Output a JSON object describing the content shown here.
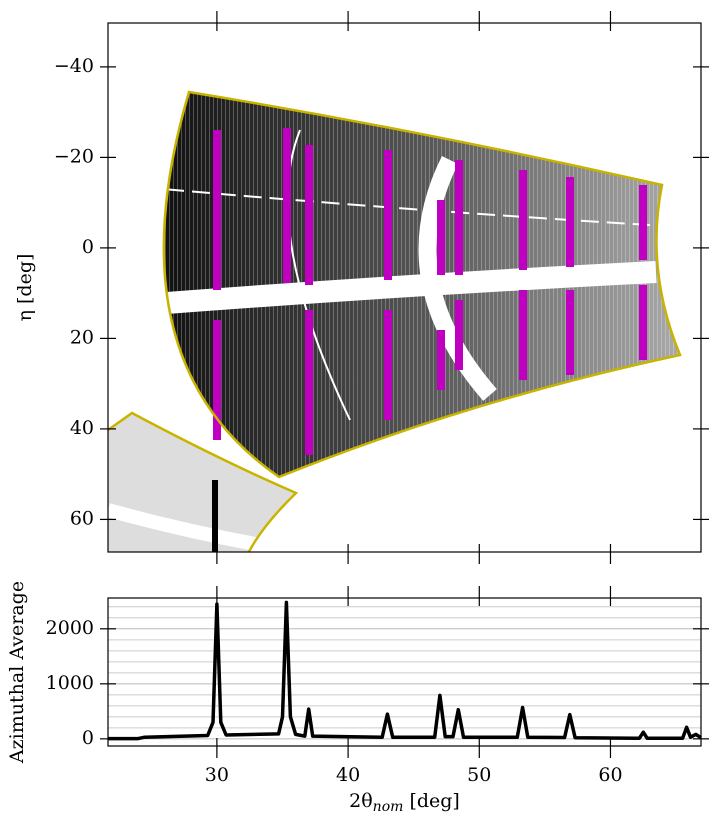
{
  "chart_data": [
    {
      "type": "image",
      "ylabel": "η [deg]",
      "xlim": [
        21.7,
        66.9
      ],
      "xticks": [
        30,
        40,
        50,
        60
      ],
      "ylim": [
        -49.7,
        67.2
      ],
      "y_inverted": true,
      "yticks": [
        {
          "value": -40,
          "label": "−40"
        },
        {
          "value": -20,
          "label": "−20"
        },
        0,
        20,
        40,
        60
      ]
    },
    {
      "type": "line",
      "ylabel": "Azimuthal Average",
      "xlabel": {
        "main": "2θ",
        "sub": "nom",
        "rest": " [deg]"
      },
      "xlim": [
        21.7,
        66.9
      ],
      "xticks": [
        30,
        40,
        50,
        60
      ],
      "ylim": [
        -130,
        2560
      ],
      "yticks": [
        0,
        1000,
        2000
      ],
      "grid": true,
      "yminorticks": [
        200,
        400,
        600,
        800,
        1200,
        1400,
        1600,
        1800,
        2200,
        2400
      ],
      "color": "#000000",
      "x": [
        21.7,
        24,
        24.5,
        29.3,
        29.7,
        30.0,
        30.3,
        30.7,
        34.7,
        35.0,
        35.3,
        35.6,
        36.0,
        36.7,
        37.0,
        37.3,
        42.6,
        43.0,
        43.4,
        46.6,
        47.0,
        47.4,
        48.0,
        48.4,
        48.8,
        52.9,
        53.3,
        53.7,
        56.5,
        56.9,
        57.3,
        62.2,
        62.5,
        62.8,
        65.5,
        65.8,
        66.1,
        66.5,
        66.9
      ],
      "values": [
        5,
        5,
        30,
        60,
        300,
        2450,
        300,
        70,
        90,
        400,
        2480,
        400,
        80,
        50,
        540,
        50,
        30,
        450,
        30,
        30,
        790,
        40,
        40,
        530,
        30,
        30,
        570,
        30,
        25,
        440,
        20,
        10,
        120,
        10,
        10,
        210,
        30,
        80,
        20
      ]
    }
  ]
}
